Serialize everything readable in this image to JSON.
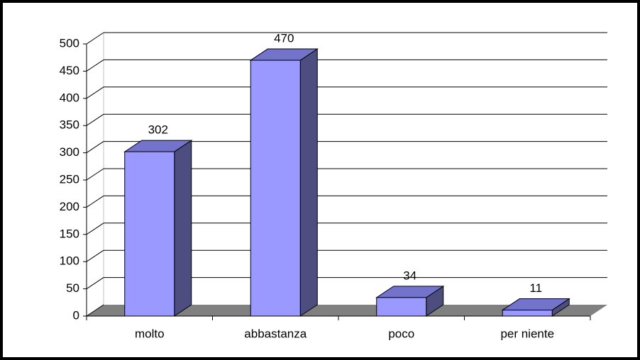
{
  "chart_data": {
    "type": "bar3d",
    "categories": [
      "molto",
      "abbastanza",
      "poco",
      "per niente"
    ],
    "values": [
      302,
      470,
      34,
      11
    ],
    "color": "#9999ff",
    "ylim": [
      0,
      500
    ],
    "yticks": [
      0,
      50,
      100,
      150,
      200,
      250,
      300,
      350,
      400,
      450,
      500
    ],
    "grid": true,
    "data_labels": true
  }
}
